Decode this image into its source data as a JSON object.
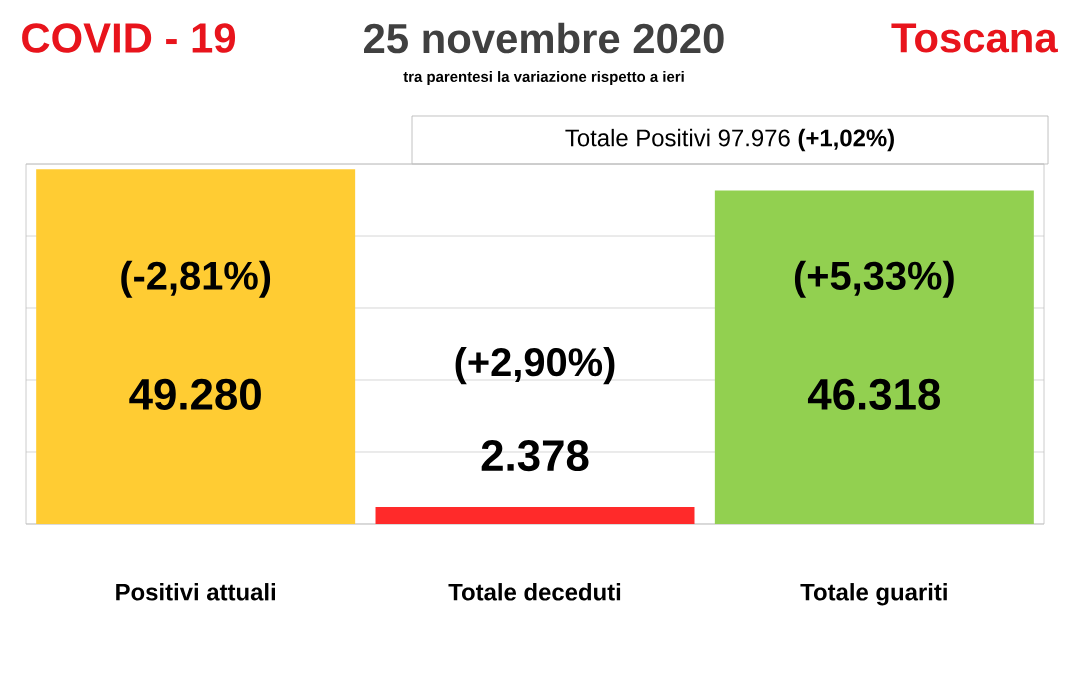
{
  "chart_data": {
    "type": "bar",
    "title": "25 novembre 2020",
    "subtitle": "tra parentesi la variazione rispetto a ieri",
    "categories": [
      "Positivi attuali",
      "Totale deceduti",
      "Totale guariti"
    ],
    "values": [
      49280,
      2378,
      46318
    ],
    "colors": [
      "#ffcc33",
      "#ff2a2a",
      "#92d050"
    ],
    "value_labels": [
      "49.280",
      "2.378",
      "46.318"
    ],
    "ylim": [
      0,
      50000
    ],
    "yticks": [
      {
        "value": 0,
        "label": null
      },
      {
        "value": 10000,
        "label": null
      },
      {
        "value": 20000,
        "label": null
      },
      {
        "value": 30000,
        "label": null
      },
      {
        "value": 40000,
        "label": null
      },
      {
        "value": 50000,
        "label": null
      }
    ],
    "grid": "y",
    "annotations": [
      "COVID - 19",
      "Toscana",
      "Totale Positivi     97.976    **(+1,02%)**",
      "(-2,81%)",
      "(+2,90%)",
      "(+5,33%)"
    ]
  }
}
